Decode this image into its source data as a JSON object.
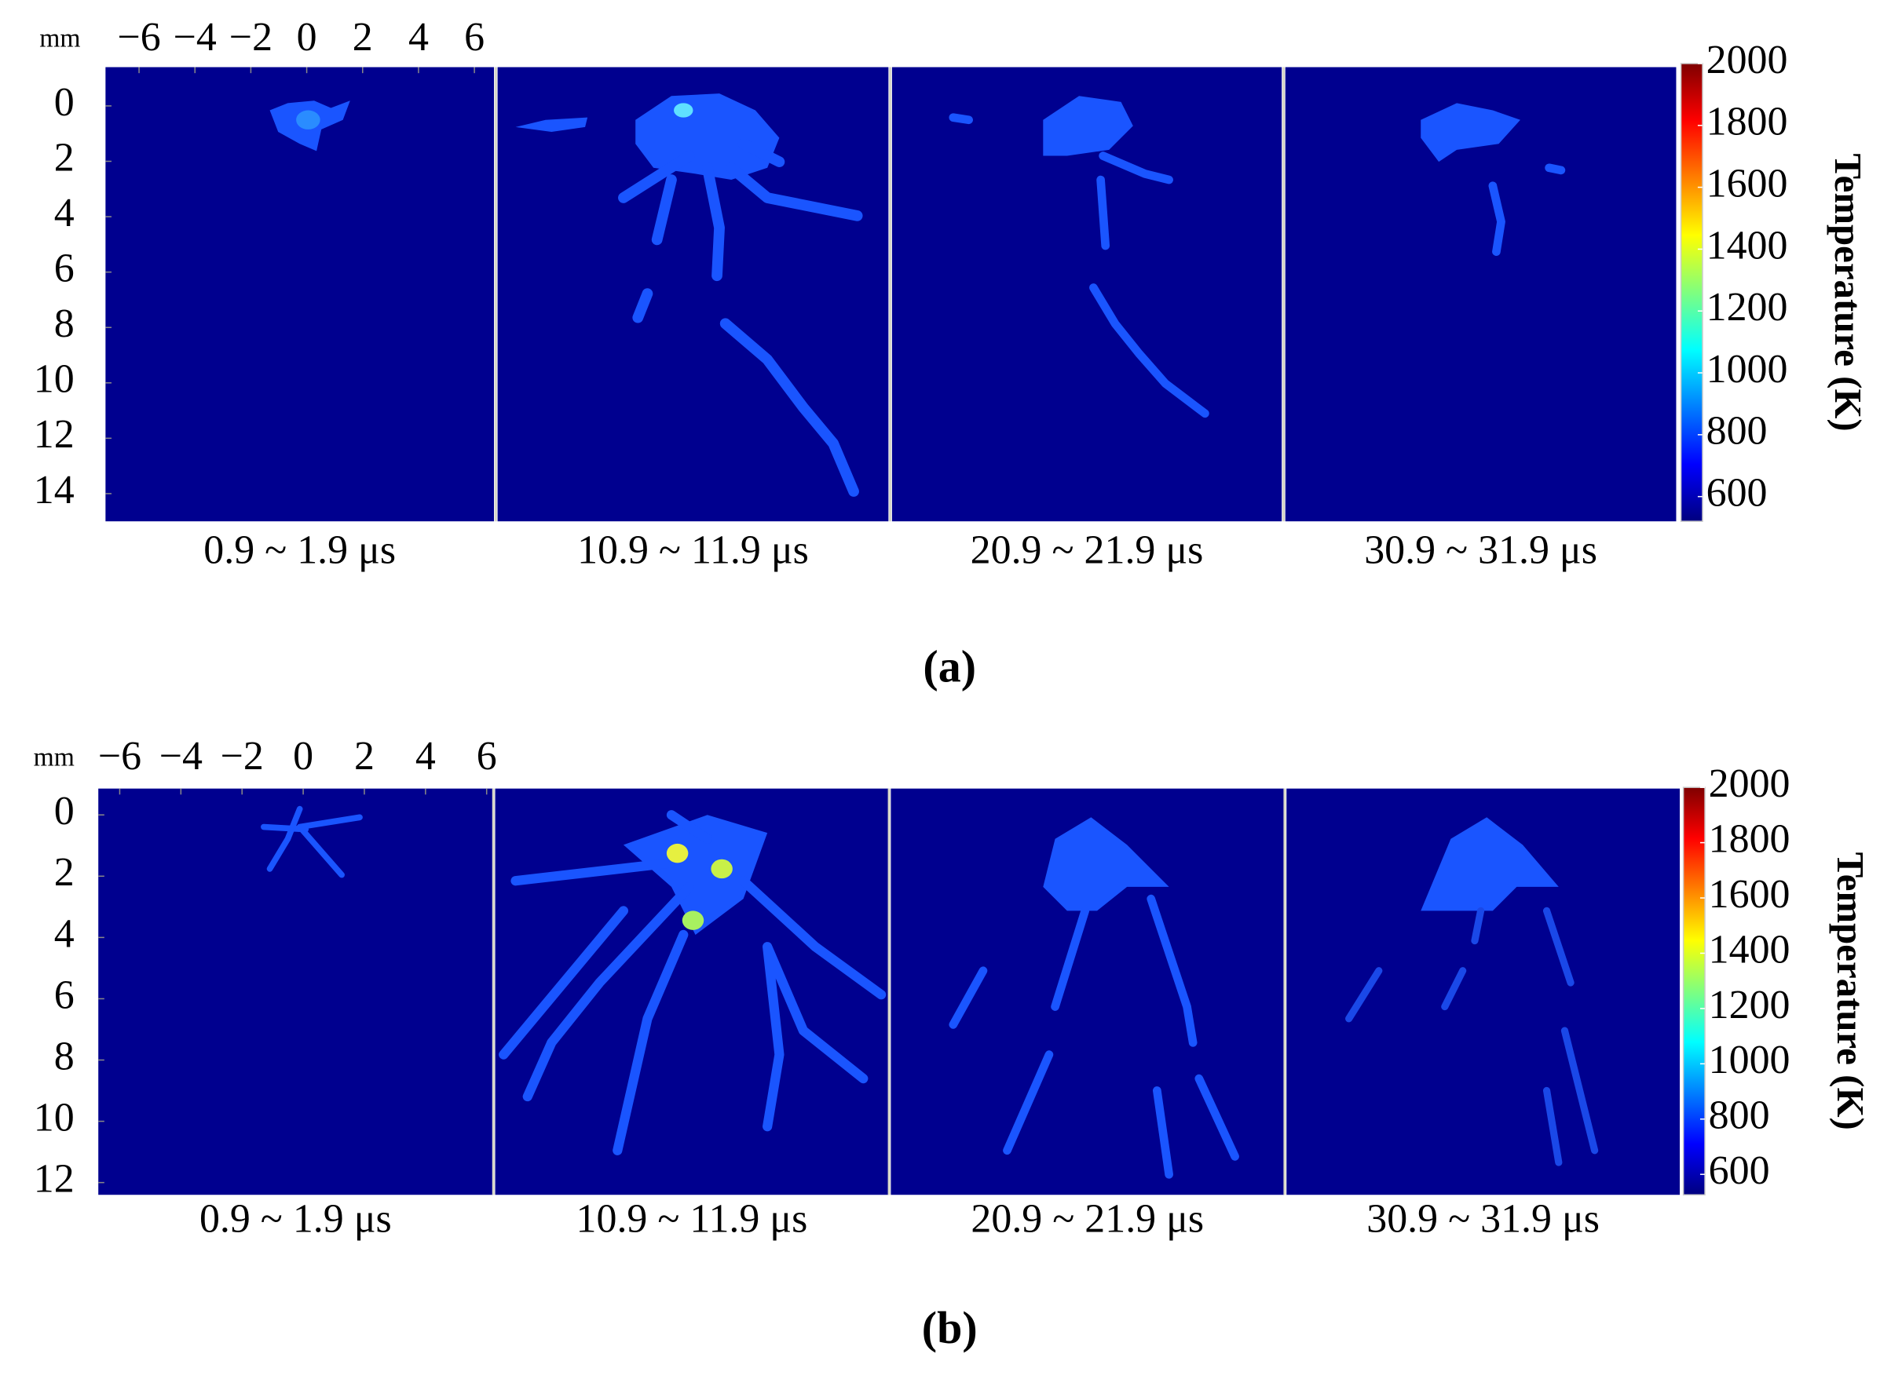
{
  "figures": [
    {
      "label": "(a)",
      "unit": "mm",
      "xlim": [
        -7.2,
        6.7
      ],
      "xticks": [
        {
          "value": -6,
          "label": "−6"
        },
        {
          "value": -4,
          "label": "−4"
        },
        {
          "value": -2,
          "label": "−2"
        },
        0,
        2,
        4,
        6
      ],
      "ylim": [
        -1.4,
        15
      ],
      "yticks": [
        0,
        2,
        4,
        6,
        8,
        10,
        12,
        14
      ],
      "frames": [
        "0.9 ~ 1.9 μs",
        "10.9 ~ 11.9 μs",
        "20.9 ~ 21.9 μs",
        "30.9 ~ 31.9 μs"
      ],
      "colorbar": {
        "label": "Temperature (K)",
        "clim": [
          520,
          2000
        ],
        "ticks": [
          600,
          800,
          1000,
          1200,
          1400,
          1600,
          1800,
          2000
        ],
        "colormap": "jet"
      }
    },
    {
      "label": "(b)",
      "unit": "mm",
      "xlim": [
        -6.7,
        6.2
      ],
      "xticks": [
        {
          "value": -6,
          "label": "−6"
        },
        {
          "value": -4,
          "label": "−4"
        },
        {
          "value": -2,
          "label": "−2"
        },
        0,
        2,
        4,
        6
      ],
      "ylim": [
        -0.86,
        12.4
      ],
      "yticks": [
        0,
        2,
        4,
        6,
        8,
        10,
        12
      ],
      "frames": [
        "0.9 ~ 1.9 μs",
        "10.9 ~ 11.9 μs",
        "20.9 ~ 21.9 μs",
        "30.9 ~ 31.9 μs"
      ],
      "colorbar": {
        "label": "Temperature (K)",
        "clim": [
          526,
          2000
        ],
        "ticks": [
          600,
          800,
          1000,
          1200,
          1400,
          1600,
          1800,
          2000
        ],
        "colormap": "jet"
      }
    }
  ]
}
